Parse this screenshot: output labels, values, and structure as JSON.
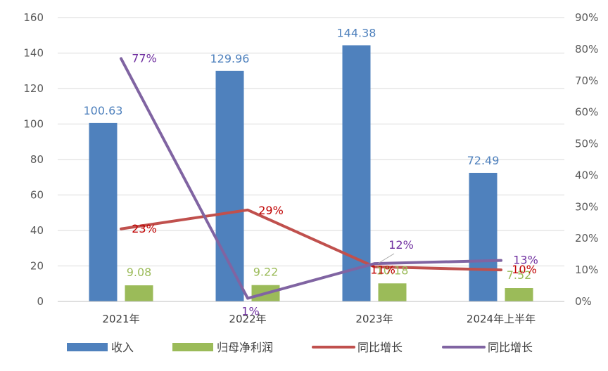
{
  "chart_data": {
    "type": "bar",
    "categories": [
      "2021年",
      "2022年",
      "2023年",
      "2024年上半年"
    ],
    "series": [
      {
        "name": "收入",
        "kind": "bar",
        "axis": "left",
        "color": "#4F81BD",
        "label_color": "#4F81BD",
        "values": [
          100.63,
          129.96,
          144.38,
          72.49
        ],
        "value_labels": [
          "100.63",
          "129.96",
          "144.38",
          "72.49"
        ]
      },
      {
        "name": "归母净利润",
        "kind": "bar",
        "axis": "left",
        "color": "#9BBB59",
        "label_color": "#9BBB59",
        "values": [
          9.08,
          9.22,
          10.18,
          7.52
        ],
        "value_labels": [
          "9.08",
          "9.22",
          "10.18",
          "7.52"
        ]
      },
      {
        "name": "同比增长",
        "kind": "line",
        "axis": "right",
        "color": "#C0504D",
        "label_color": "#C00000",
        "values": [
          0.23,
          0.29,
          0.11,
          0.1
        ],
        "value_labels": [
          "23%",
          "29%",
          "11%",
          "10%"
        ]
      },
      {
        "name": "同比增长",
        "kind": "line",
        "axis": "right",
        "color": "#8064A2",
        "label_color": "#7030A0",
        "values": [
          0.77,
          0.01,
          0.12,
          0.13
        ],
        "value_labels": [
          "77%",
          "1%",
          "12%",
          "13%"
        ]
      }
    ],
    "y_left": {
      "min": 0,
      "max": 160,
      "step": 20,
      "ticks": [
        "0",
        "20",
        "40",
        "60",
        "80",
        "100",
        "120",
        "140",
        "160"
      ]
    },
    "y_right": {
      "min": 0,
      "max": 0.9,
      "step": 0.1,
      "ticks": [
        "0%",
        "10%",
        "20%",
        "30%",
        "40%",
        "50%",
        "60%",
        "70%",
        "80%",
        "90%"
      ]
    },
    "grid": true,
    "legend_position": "bottom"
  }
}
